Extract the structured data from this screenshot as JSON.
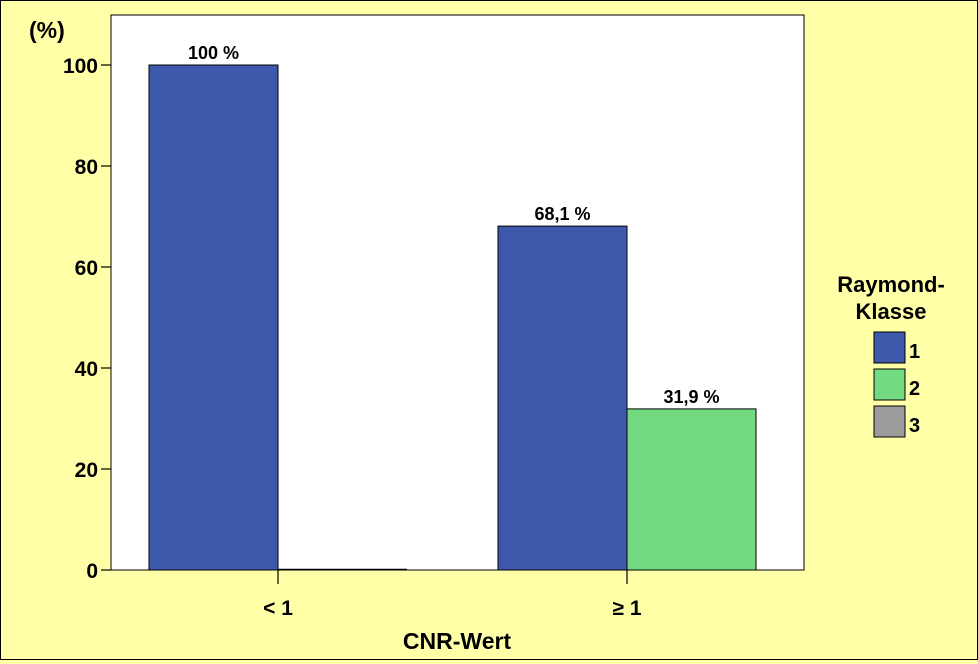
{
  "chart_data": {
    "type": "bar",
    "title": "",
    "ylabel": "(%)",
    "xlabel": "CNR-Wert",
    "categories": [
      "< 1",
      "≥ 1"
    ],
    "ylim": [
      0,
      100
    ],
    "yticks": [
      0,
      20,
      40,
      60,
      80,
      100
    ],
    "series": [
      {
        "name": "1",
        "color": "#3E58AC",
        "values": [
          100,
          68.1
        ],
        "labels": [
          "100 %",
          "68,1 %"
        ]
      },
      {
        "name": "2",
        "color": "#73DA82",
        "values": [
          0,
          31.9
        ],
        "labels": [
          "",
          "31,9 %"
        ]
      },
      {
        "name": "3",
        "color": "#9B9B9B",
        "values": [
          0,
          0
        ],
        "labels": [
          "",
          ""
        ]
      }
    ],
    "legend": {
      "title_line1": "Raymond-",
      "title_line2": "Klasse",
      "placement": "right"
    }
  }
}
